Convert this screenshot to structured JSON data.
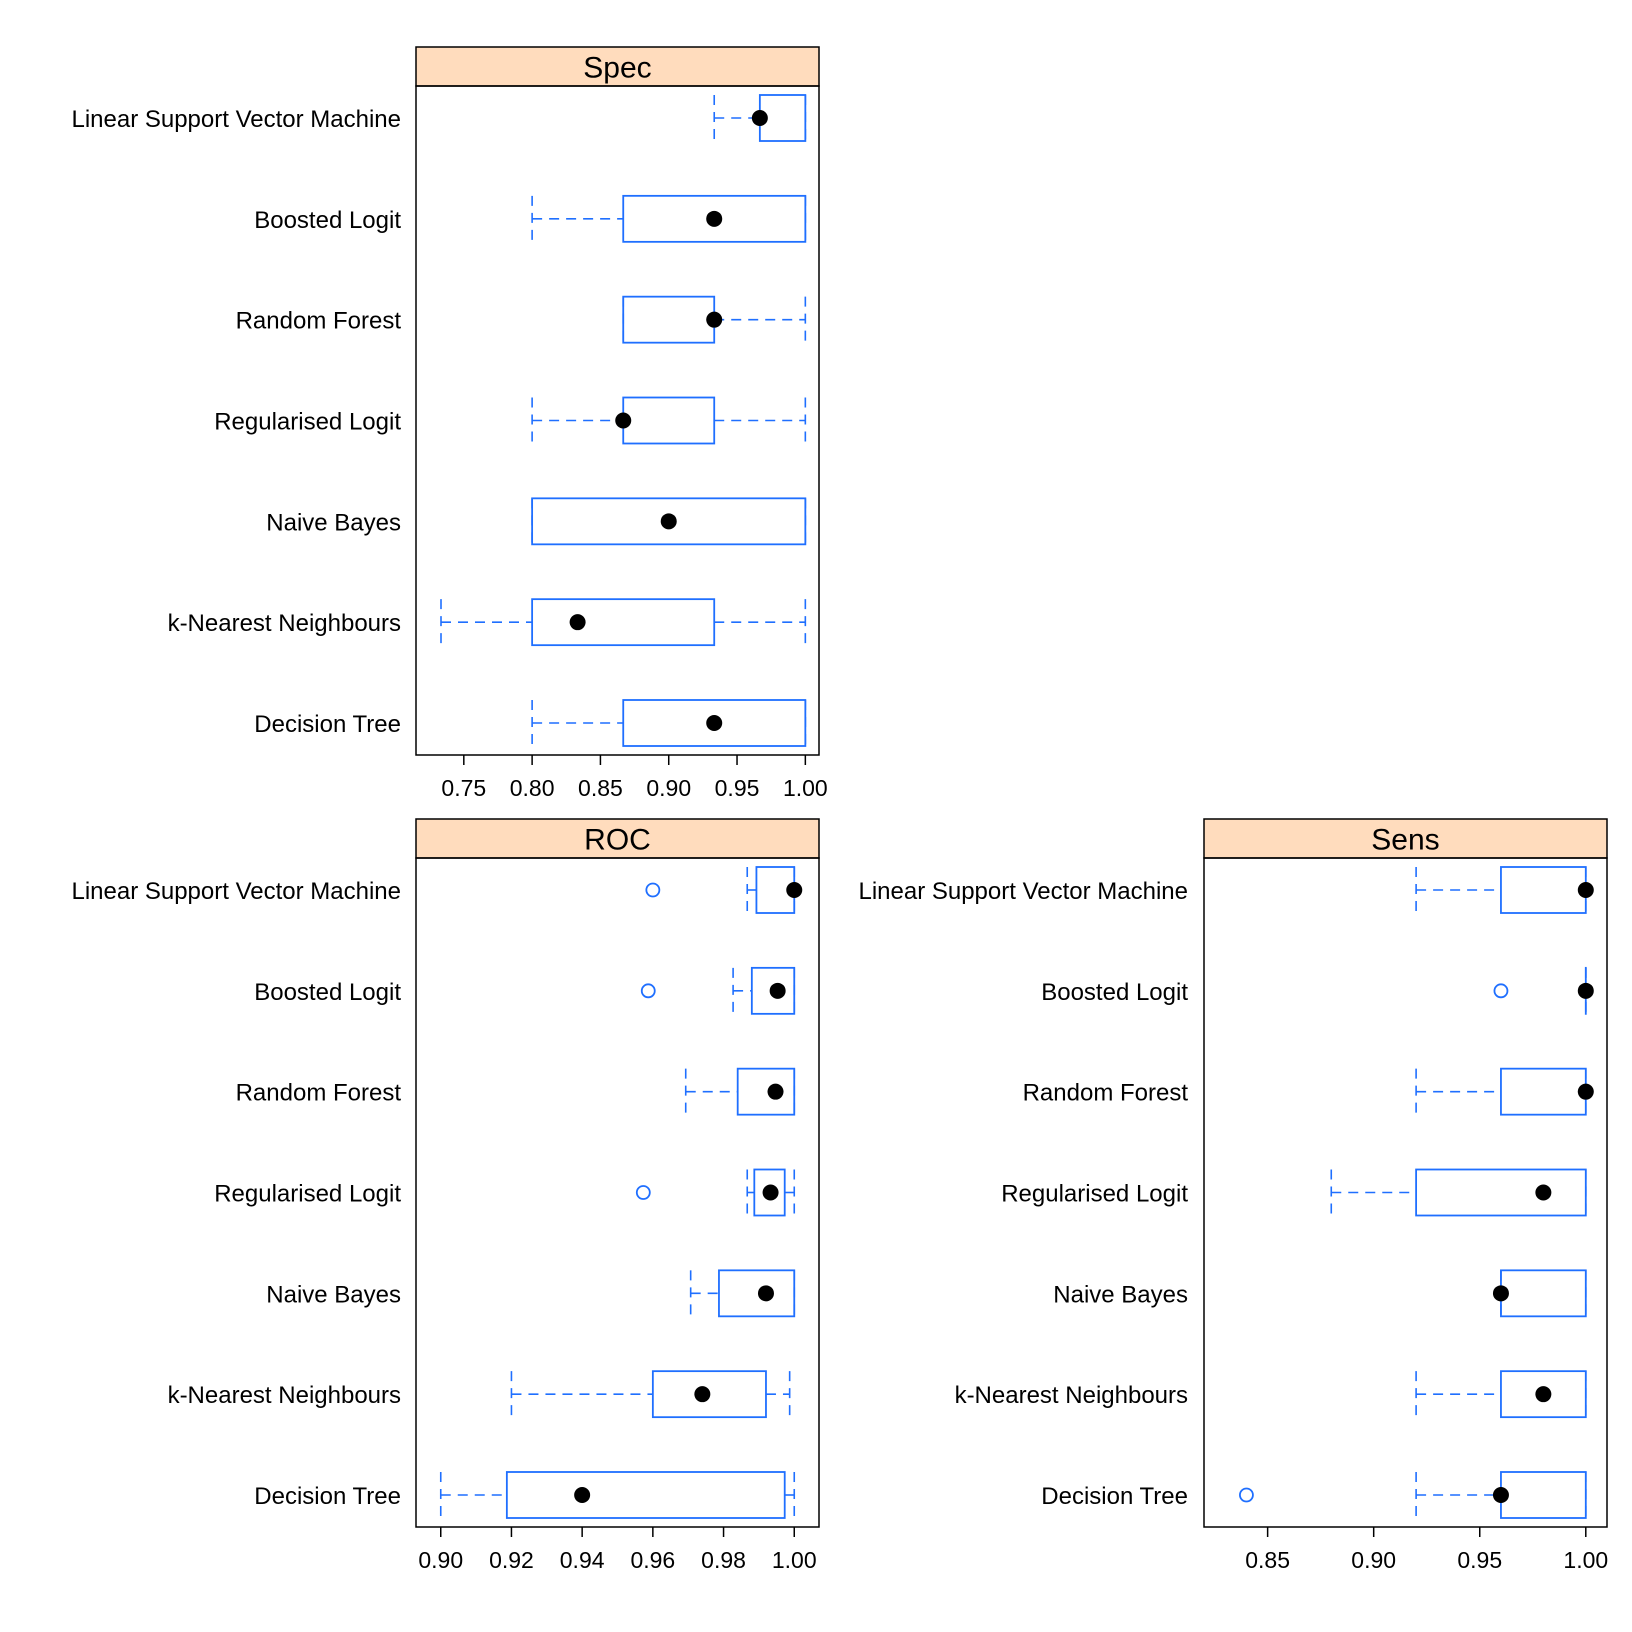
{
  "colors": {
    "box": "#1f6fff",
    "median": "#000000",
    "strip": "#ffdcbd",
    "frame": "#000000"
  },
  "chart_data": [
    {
      "type": "box",
      "title": "Spec",
      "xlim": [
        0.715,
        1.01
      ],
      "ticks": [
        "0.75",
        "0.80",
        "0.85",
        "0.90",
        "0.95",
        "1.00"
      ],
      "tick_values": [
        0.75,
        0.8,
        0.85,
        0.9,
        0.95,
        1.0
      ],
      "show_tick_labels": true,
      "categories": [
        "Linear Support Vector Machine",
        "Boosted Logit",
        "Random Forest",
        "Regularised Logit",
        "Naive Bayes",
        "k-Nearest Neighbours",
        "Decision Tree"
      ],
      "boxes": [
        {
          "min": 0.9333,
          "q1": 0.9667,
          "median": 0.9667,
          "q3": 1.0,
          "max": 1.0,
          "outliers": []
        },
        {
          "min": 0.8,
          "q1": 0.8667,
          "median": 0.9333,
          "q3": 1.0,
          "max": 1.0,
          "outliers": []
        },
        {
          "min": 0.8667,
          "q1": 0.8667,
          "median": 0.9333,
          "q3": 0.9333,
          "max": 1.0,
          "outliers": []
        },
        {
          "min": 0.8,
          "q1": 0.8667,
          "median": 0.8667,
          "q3": 0.9333,
          "max": 1.0,
          "outliers": []
        },
        {
          "min": 0.8,
          "q1": 0.8,
          "median": 0.9,
          "q3": 1.0,
          "max": 1.0,
          "outliers": []
        },
        {
          "min": 0.7333,
          "q1": 0.8,
          "median": 0.8333,
          "q3": 0.9333,
          "max": 1.0,
          "outliers": []
        },
        {
          "min": 0.8,
          "q1": 0.8667,
          "median": 0.9333,
          "q3": 1.0,
          "max": 1.0,
          "outliers": []
        }
      ]
    },
    {
      "type": "box",
      "title": "ROC",
      "xlim": [
        0.893,
        1.007
      ],
      "ticks": [
        "0.90",
        "0.92",
        "0.94",
        "0.96",
        "0.98",
        "1.00"
      ],
      "tick_values": [
        0.9,
        0.92,
        0.94,
        0.96,
        0.98,
        1.0
      ],
      "show_tick_labels": true,
      "categories": [
        "Linear Support Vector Machine",
        "Boosted Logit",
        "Random Forest",
        "Regularised Logit",
        "Naive Bayes",
        "k-Nearest Neighbours",
        "Decision Tree"
      ],
      "boxes": [
        {
          "min": 0.9867,
          "q1": 0.9893,
          "median": 1.0,
          "q3": 1.0,
          "max": 1.0,
          "outliers": [
            0.96
          ]
        },
        {
          "min": 0.9827,
          "q1": 0.988,
          "median": 0.9953,
          "q3": 1.0,
          "max": 1.0,
          "outliers": [
            0.9587
          ]
        },
        {
          "min": 0.9693,
          "q1": 0.984,
          "median": 0.9947,
          "q3": 1.0,
          "max": 1.0,
          "outliers": []
        },
        {
          "min": 0.9867,
          "q1": 0.9887,
          "median": 0.9933,
          "q3": 0.9973,
          "max": 1.0,
          "outliers": [
            0.9573
          ]
        },
        {
          "min": 0.9707,
          "q1": 0.9787,
          "median": 0.992,
          "q3": 1.0,
          "max": 1.0,
          "outliers": []
        },
        {
          "min": 0.92,
          "q1": 0.96,
          "median": 0.974,
          "q3": 0.992,
          "max": 0.9987,
          "outliers": []
        },
        {
          "min": 0.9,
          "q1": 0.9187,
          "median": 0.94,
          "q3": 0.9973,
          "max": 1.0,
          "outliers": []
        }
      ]
    },
    {
      "type": "box",
      "title": "Sens",
      "xlim": [
        0.82,
        1.01
      ],
      "ticks": [
        "0.85",
        "0.90",
        "0.95",
        "1.00"
      ],
      "tick_values": [
        0.85,
        0.9,
        0.95,
        1.0
      ],
      "show_tick_labels": true,
      "categories": [
        "Linear Support Vector Machine",
        "Boosted Logit",
        "Random Forest",
        "Regularised Logit",
        "Naive Bayes",
        "k-Nearest Neighbours",
        "Decision Tree"
      ],
      "boxes": [
        {
          "min": 0.92,
          "q1": 0.96,
          "median": 1.0,
          "q3": 1.0,
          "max": 1.0,
          "outliers": []
        },
        {
          "min": 1.0,
          "q1": 1.0,
          "median": 1.0,
          "q3": 1.0,
          "max": 1.0,
          "outliers": [
            0.96
          ]
        },
        {
          "min": 0.92,
          "q1": 0.96,
          "median": 1.0,
          "q3": 1.0,
          "max": 1.0,
          "outliers": []
        },
        {
          "min": 0.88,
          "q1": 0.92,
          "median": 0.98,
          "q3": 1.0,
          "max": 1.0,
          "outliers": []
        },
        {
          "min": 0.96,
          "q1": 0.96,
          "median": 0.96,
          "q3": 1.0,
          "max": 1.0,
          "outliers": []
        },
        {
          "min": 0.92,
          "q1": 0.96,
          "median": 0.98,
          "q3": 1.0,
          "max": 1.0,
          "outliers": []
        },
        {
          "min": 0.92,
          "q1": 0.96,
          "median": 0.96,
          "q3": 1.0,
          "max": 1.0,
          "outliers": [
            0.84
          ]
        }
      ]
    }
  ]
}
